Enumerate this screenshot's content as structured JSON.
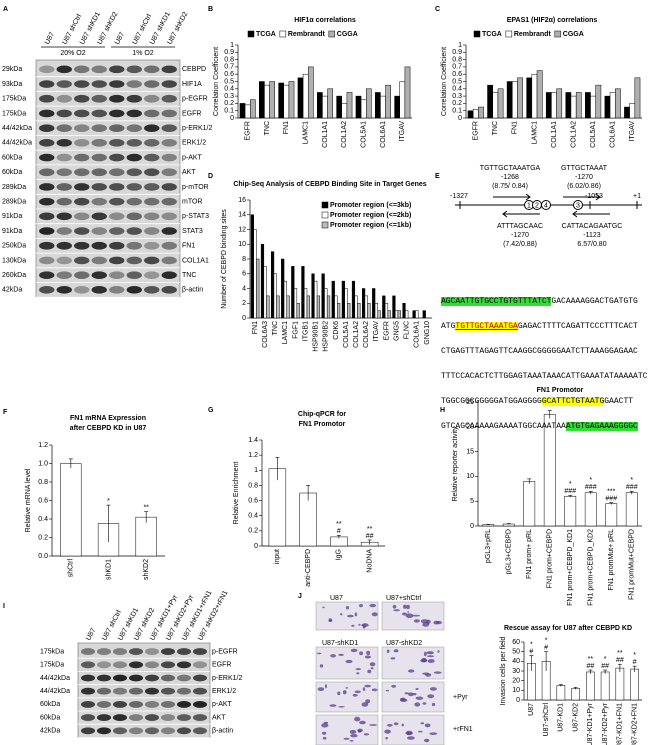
{
  "panel_labels": [
    "A",
    "B",
    "C",
    "D",
    "E",
    "F",
    "G",
    "H",
    "I",
    "J"
  ],
  "blots": [
    {
      "lanes": [
        "U87",
        "U87 shCtrl",
        "U87 shKD1",
        "U87 shKD2",
        "U87",
        "U87 shCtrl",
        "U87 shKD1",
        "U87 shKD2"
      ],
      "groups": [
        "20% O2",
        "1% O2"
      ],
      "rows": [
        {
          "size": "29kDa",
          "protein": "CEBPD"
        },
        {
          "size": "93kDa",
          "protein": "HIF1A"
        },
        {
          "size": "175kDa",
          "protein": "p-EGFR"
        },
        {
          "size": "175kDa",
          "protein": "EGFR"
        },
        {
          "size": "44/42kDa",
          "protein": "p-ERK1/2"
        },
        {
          "size": "44/42kDa",
          "protein": "ERK1/2"
        },
        {
          "size": "60kDa",
          "protein": "p-AKT"
        },
        {
          "size": "60kDa",
          "protein": "AKT"
        },
        {
          "size": "289kDa",
          "protein": "p-mTOR"
        },
        {
          "size": "289kDa",
          "protein": "mTOR"
        },
        {
          "size": "91kDa",
          "protein": "p-STAT3"
        },
        {
          "size": "91kDa",
          "protein": "STAT3"
        },
        {
          "size": "250kDa",
          "protein": "FN1"
        },
        {
          "size": "130kDa",
          "protein": "COL1A1"
        },
        {
          "size": "260kDa",
          "protein": "TNC"
        },
        {
          "size": "42kDa",
          "protein": "β-actin"
        }
      ]
    },
    {
      "lanes": [
        "U87",
        "U87 shCtrl",
        "U87 shKD1",
        "U87 shKD2",
        "U87 shKD1+Pyr",
        "U87 shKD2+Pyr",
        "U87 shKD1+rFN1",
        "U87 shKD2+rFN1"
      ],
      "groups": [],
      "rows": [
        {
          "size": "175kDa",
          "protein": "p-EGFR"
        },
        {
          "size": "175kDa",
          "protein": "EGFR"
        },
        {
          "size": "44/42kDa",
          "protein": "p-ERK1/2"
        },
        {
          "size": "44/42kDa",
          "protein": "ERK1/2"
        },
        {
          "size": "60kDa",
          "protein": "p-AKT"
        },
        {
          "size": "60kDa",
          "protein": "AKT"
        },
        {
          "size": "42kDa",
          "protein": "β-actin"
        }
      ]
    }
  ],
  "chart_data": [
    {
      "type": "bar",
      "title": "HIF1α correlations",
      "ylabel": "Correlation Coefficient",
      "categories": [
        "EGFR",
        "TNC",
        "FN1",
        "LAMC1",
        "COL1A1",
        "COL1A2",
        "COL5A1",
        "COL6A1",
        "ITGAV"
      ],
      "series": [
        {
          "name": "TCGA",
          "color": "#000000",
          "values": [
            0.2,
            0.5,
            0.48,
            0.55,
            0.35,
            0.3,
            0.3,
            0.35,
            0.3
          ]
        },
        {
          "name": "Rembrandt",
          "color": "#ffffff",
          "values": [
            0.18,
            0.45,
            0.45,
            0.6,
            0.3,
            0.2,
            0.25,
            0.3,
            0.5
          ]
        },
        {
          "name": "CGGA",
          "color": "#b0b0b0",
          "values": [
            0.25,
            0.5,
            0.5,
            0.7,
            0.4,
            0.35,
            0.4,
            0.45,
            0.7
          ]
        }
      ],
      "ylim": [
        0,
        1
      ],
      "yticks": [
        0,
        0.1,
        0.2,
        0.3,
        0.4,
        0.5,
        0.6,
        0.7,
        0.8,
        0.9,
        1
      ]
    },
    {
      "type": "bar",
      "title": "EPAS1 (HIF2α) correlations",
      "ylabel": "Correlation Coefficient",
      "categories": [
        "EGFR",
        "TNC",
        "FN1",
        "LAMC1",
        "COL1A1",
        "COL1A2",
        "COL5A1",
        "COL6A1",
        "ITGAV"
      ],
      "series": [
        {
          "name": "TCGA",
          "color": "#000000",
          "values": [
            0.1,
            0.45,
            0.5,
            0.55,
            0.35,
            0.35,
            0.35,
            0.3,
            0.15
          ]
        },
        {
          "name": "Rembrandt",
          "color": "#ffffff",
          "values": [
            0.12,
            0.35,
            0.5,
            0.6,
            0.35,
            0.3,
            0.3,
            0.35,
            0.2
          ]
        },
        {
          "name": "CGGA",
          "color": "#b0b0b0",
          "values": [
            0.15,
            0.4,
            0.55,
            0.65,
            0.4,
            0.35,
            0.45,
            0.4,
            0.55
          ]
        }
      ],
      "ylim": [
        0,
        1
      ],
      "yticks": [
        0,
        0.1,
        0.2,
        0.3,
        0.4,
        0.5,
        0.6,
        0.7,
        0.8,
        0.9,
        1
      ]
    },
    {
      "type": "bar",
      "title": "Chip-Seq Analysis of CEBPD Binding Site in Target Genes",
      "ylabel": "Number of CEBPD binding sites",
      "categories": [
        "FN1",
        "COL6A3",
        "TNC",
        "LAMC1",
        "FGF1",
        "ITGB1",
        "HSP90B1",
        "HSP90B2",
        "CDK6",
        "COL5A1",
        "COL1A2",
        "COL6A2",
        "ITGAV",
        "EGFR",
        "GNG5",
        "FLNC",
        "COL6A1",
        "GNG10"
      ],
      "series": [
        {
          "name": "Promoter region (<=3kb)",
          "color": "#000000",
          "values": [
            14,
            10,
            9,
            8,
            7,
            7,
            6,
            6,
            5,
            5,
            5,
            4,
            4,
            3,
            3,
            2,
            1,
            1
          ]
        },
        {
          "name": "Promoter region (<=2kb)",
          "color": "#ffffff",
          "values": [
            12,
            7,
            6,
            5,
            4,
            4,
            5,
            4,
            3,
            4,
            3,
            3,
            2,
            2,
            1,
            1,
            1,
            0
          ]
        },
        {
          "name": "Promoter region (<=1kb)",
          "color": "#bbbbbb",
          "values": [
            8,
            3,
            3,
            3,
            2,
            3,
            3,
            3,
            2,
            2,
            2,
            2,
            1,
            1,
            1,
            0,
            0,
            0
          ]
        }
      ],
      "ylim": [
        0,
        16
      ],
      "yticks": [
        0,
        2,
        4,
        6,
        8,
        10,
        12,
        14,
        16
      ]
    },
    {
      "type": "bar",
      "title": [
        "FN1 mRNA Expression",
        "after CEBPD KD in U87"
      ],
      "ylabel": "Relative mRNA level",
      "categories": [
        "shCtrl",
        "shKD1",
        "shKD2"
      ],
      "values": [
        1.0,
        0.35,
        0.42
      ],
      "errors": [
        0.05,
        0.2,
        0.06
      ],
      "color": "#ffffff",
      "annotations": [
        null,
        [
          "*"
        ],
        [
          "**"
        ]
      ],
      "ylim": [
        0,
        1.2
      ],
      "yticks": [
        {
          "value": 0,
          "label": "0.0"
        },
        {
          "value": 0.2,
          "label": "0.2"
        },
        {
          "value": 0.4,
          "label": "0.4"
        },
        {
          "value": 0.6,
          "label": "0.6"
        },
        {
          "value": 0.8,
          "label": "0.8"
        },
        {
          "value": 1,
          "label": "1.0"
        },
        {
          "value": 1.2,
          "label": "1.2"
        }
      ]
    },
    {
      "type": "bar",
      "title": [
        "Chip-qPCR for",
        "FN1 Promotor"
      ],
      "ylabel": "Relative Enrichment",
      "categories": [
        "input",
        "anti-CEBPD",
        "IgG",
        "NoDNA"
      ],
      "values": [
        1.02,
        0.7,
        0.12,
        0.05
      ],
      "errors": [
        0.15,
        0.1,
        0.02,
        0.03
      ],
      "color": "#ffffff",
      "annotations": [
        null,
        null,
        [
          "**",
          "#"
        ],
        [
          "**",
          "##"
        ]
      ],
      "ylim": [
        0,
        1.4
      ],
      "yticks": [
        0,
        0.2,
        0.4,
        0.6,
        0.8,
        1,
        1.2,
        1.4
      ]
    },
    {
      "type": "bar",
      "title": "FN1 Promotor",
      "ylabel": "Relative reporter activity",
      "categories": [
        "pGL3+pRL",
        "pGL3+CEBPD",
        "FN1 prom+ pRL",
        "FN1 prom+CEBPD",
        "FN1 prom+CEBPD_KD1",
        "FN1 prom+CEBPD_KD2",
        "FN1 promMut+ pRL",
        "FN1 promMut+CEBPD"
      ],
      "values": [
        0.3,
        0.4,
        9,
        22.5,
        6,
        6.7,
        4.5,
        6.7
      ],
      "errors": [
        0.05,
        0.1,
        0.5,
        0.8,
        0.2,
        0.3,
        0.2,
        0.3
      ],
      "color": "#ffffff",
      "annotations": [
        null,
        null,
        null,
        [
          "***"
        ],
        [
          "*",
          "###"
        ],
        [
          "*",
          "###"
        ],
        [
          "***",
          "###"
        ],
        [
          "*",
          "###"
        ]
      ],
      "ylim": [
        0,
        25
      ],
      "yticks": [
        0,
        5,
        10,
        15,
        20,
        25
      ]
    },
    {
      "type": "bar",
      "title": "Rescue assay for U87 after CEBPD KD",
      "ylabel": "Invasion cells per field",
      "categories": [
        "U87",
        "U87-shCtrl",
        "U87-KD1",
        "U87-KD2",
        "U87-KD1+Pyr",
        "U87-KD2+Pyr",
        "U87-KD1+FN1",
        "U87-KD2+FN1"
      ],
      "values": [
        38,
        40,
        15,
        12,
        29,
        29,
        33,
        32
      ],
      "errors": [
        8,
        10,
        1,
        1,
        2,
        2,
        4,
        3
      ],
      "color": "#ffffff",
      "annotations": [
        [
          "*",
          "#"
        ],
        [
          "*",
          "#"
        ],
        null,
        null,
        [
          "**",
          "##"
        ],
        [
          "*",
          "##"
        ],
        [
          "**",
          "##"
        ],
        [
          "*",
          "#"
        ]
      ],
      "ylim": [
        0,
        60
      ],
      "yticks": [
        0,
        10,
        20,
        30,
        40,
        50,
        60
      ]
    }
  ],
  "promoter": {
    "positions": [
      "-1327",
      "-1053",
      "+1"
    ],
    "sites": [
      "1",
      "2",
      "4",
      "3"
    ],
    "motifs": [
      {
        "seq": "TGTTGCTAAATGA",
        "pos": "-1268",
        "score": "(8.75/ 0.84)"
      },
      {
        "seq": "GTTGCTAAAT",
        "pos": "-1270",
        "score": "(6.02/0.86)"
      },
      {
        "seq": "ATTTAGCAAC",
        "pos": "-1270",
        "score": "(7.42/0.88)"
      },
      {
        "seq": "CATTACAGAATGC",
        "pos": "-1123",
        "score": "6.57/0.80"
      }
    ],
    "sequence": [
      [
        "AGCAATTGTGCCTGTGTTTATCT",
        "GACAAAAGGACTGATGTG"
      ],
      [
        "ATG",
        "TGTTGCTAAATGA",
        "GAGACTTTTCAGATTCCCTTTCACT"
      ],
      [
        "CTGAGTTTAGAGTTCAAGGCGGGGGAATCTTAAAGGAGAAC"
      ],
      [
        "TTTCCACACTCTTGGAGTAAATAAACATTGAAATATAAAAATC"
      ],
      [
        "TGGCGGCGGGGGATGGAGGGG",
        "GCATTCTGTAATG",
        "GAACTT"
      ],
      [
        "GTCAGCAAAAAGAAAATGGCAAATAA",
        "ATGTGAGAAAGGGGC"
      ]
    ]
  },
  "micrographs": {
    "labels": [
      "U87",
      "U87+shCtrl",
      "U87-shKD1",
      "U87-shKD2"
    ],
    "row_labels": [
      "+Pyr",
      "+rFN1"
    ]
  }
}
